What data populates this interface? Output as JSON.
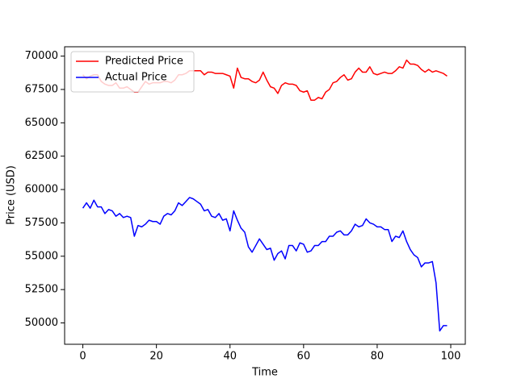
{
  "chart_data": {
    "type": "line",
    "xlabel": "Time",
    "ylabel": "Price (USD)",
    "x": [
      0,
      1,
      2,
      3,
      4,
      5,
      6,
      7,
      8,
      9,
      10,
      11,
      12,
      13,
      14,
      15,
      16,
      17,
      18,
      19,
      20,
      21,
      22,
      23,
      24,
      25,
      26,
      27,
      28,
      29,
      30,
      31,
      32,
      33,
      34,
      35,
      36,
      37,
      38,
      39,
      40,
      41,
      42,
      43,
      44,
      45,
      46,
      47,
      48,
      49,
      50,
      51,
      52,
      53,
      54,
      55,
      56,
      57,
      58,
      59,
      60,
      61,
      62,
      63,
      64,
      65,
      66,
      67,
      68,
      69,
      70,
      71,
      72,
      73,
      74,
      75,
      76,
      77,
      78,
      79,
      80,
      81,
      82,
      83,
      84,
      85,
      86,
      87,
      88,
      89,
      90,
      91,
      92,
      93,
      94,
      95,
      96,
      97,
      98,
      99
    ],
    "series": [
      {
        "name": "Predicted Price",
        "color": "#ff0000",
        "values": [
          68600,
          68300,
          68500,
          68600,
          68600,
          68100,
          67900,
          67800,
          67800,
          68000,
          67600,
          67600,
          67700,
          67500,
          67300,
          67300,
          67700,
          68100,
          67900,
          68000,
          68000,
          68000,
          68100,
          68100,
          68000,
          68200,
          68600,
          68600,
          68700,
          68900,
          68900,
          68900,
          68900,
          68600,
          68800,
          68800,
          68700,
          68700,
          68700,
          68600,
          68500,
          67600,
          69100,
          68400,
          68300,
          68300,
          68100,
          68000,
          68200,
          68800,
          68200,
          67700,
          67600,
          67200,
          67800,
          68000,
          67900,
          67900,
          67800,
          67400,
          67300,
          67400,
          66700,
          66700,
          66900,
          66800,
          67300,
          67500,
          68000,
          68100,
          68400,
          68600,
          68200,
          68300,
          68800,
          69100,
          68800,
          68800,
          69200,
          68700,
          68600,
          68700,
          68800,
          68700,
          68700,
          68900,
          69200,
          69100,
          69700,
          69400,
          69400,
          69300,
          69000,
          68800,
          69000,
          68800,
          68900,
          68800,
          68700,
          68500
        ]
      },
      {
        "name": "Actual Price",
        "color": "#0000ff",
        "values": [
          58600,
          59000,
          58600,
          59200,
          58700,
          58700,
          58200,
          58500,
          58400,
          58000,
          58200,
          57900,
          58000,
          57900,
          56500,
          57300,
          57200,
          57400,
          57700,
          57600,
          57600,
          57400,
          58000,
          58200,
          58100,
          58400,
          59000,
          58800,
          59100,
          59400,
          59300,
          59100,
          58900,
          58400,
          58500,
          58000,
          57900,
          58200,
          57700,
          57800,
          56900,
          58400,
          57700,
          57100,
          56800,
          55700,
          55300,
          55800,
          56300,
          55900,
          55500,
          55600,
          54700,
          55200,
          55400,
          54800,
          55800,
          55800,
          55400,
          56000,
          55900,
          55300,
          55400,
          55800,
          55800,
          56100,
          56100,
          56500,
          56500,
          56800,
          56900,
          56600,
          56600,
          56900,
          57400,
          57200,
          57300,
          57800,
          57500,
          57400,
          57200,
          57200,
          57000,
          57000,
          56100,
          56500,
          56400,
          56900,
          56100,
          55500,
          55100,
          54900,
          54200,
          54500,
          54500,
          54600,
          53000,
          49400,
          49800,
          49800
        ]
      }
    ],
    "xlim": [
      -4.95,
      103.95
    ],
    "xticks": [
      0,
      20,
      40,
      60,
      80,
      100
    ],
    "ylim": [
      48400,
      70700
    ],
    "yticks": [
      50000,
      52500,
      55000,
      57500,
      60000,
      62500,
      65000,
      67500,
      70000
    ],
    "legend": "upper left"
  }
}
